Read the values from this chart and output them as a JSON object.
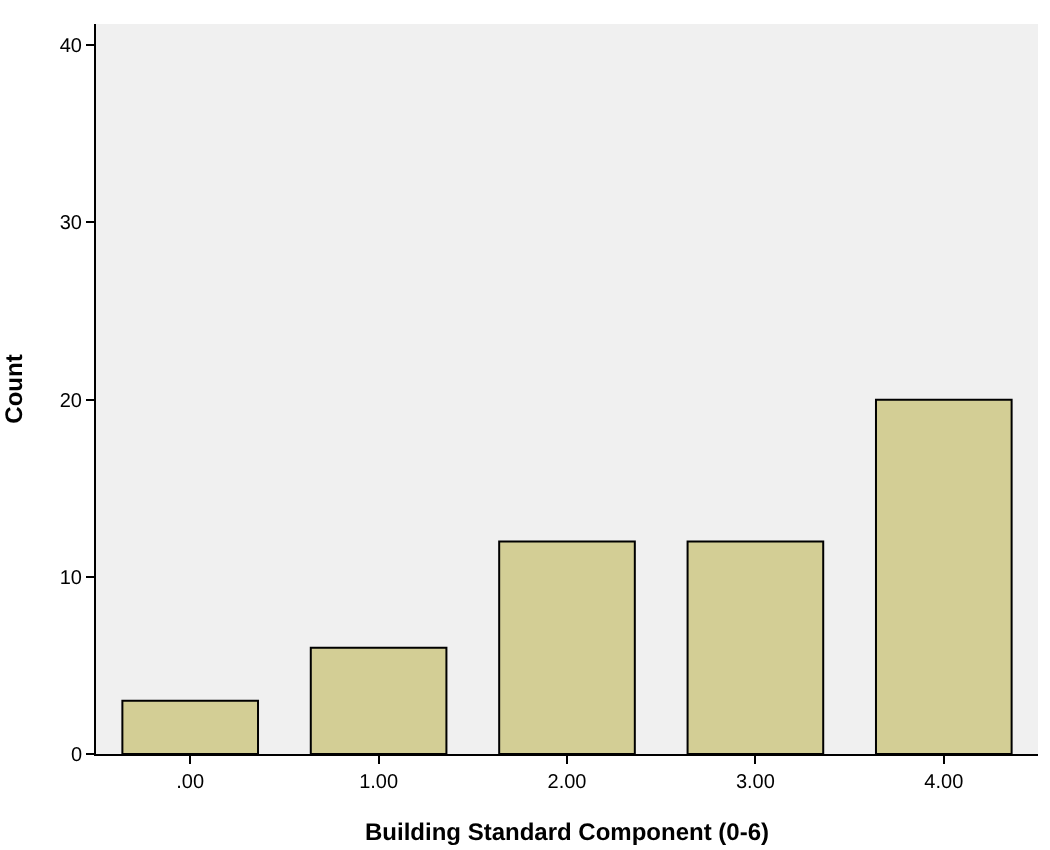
{
  "chart_data": {
    "type": "bar",
    "xlabel": "Building Standard Component (0-6)",
    "ylabel": "Count",
    "categories": [
      ".00",
      "1.00",
      "2.00",
      "3.00",
      "4.00"
    ],
    "values": [
      3,
      6,
      12,
      12,
      20
    ],
    "color": "#d3ce95",
    "ylim": [
      0,
      41.2
    ],
    "yticks": [
      0,
      10,
      20,
      30,
      40
    ],
    "grid": false,
    "legend": false
  }
}
